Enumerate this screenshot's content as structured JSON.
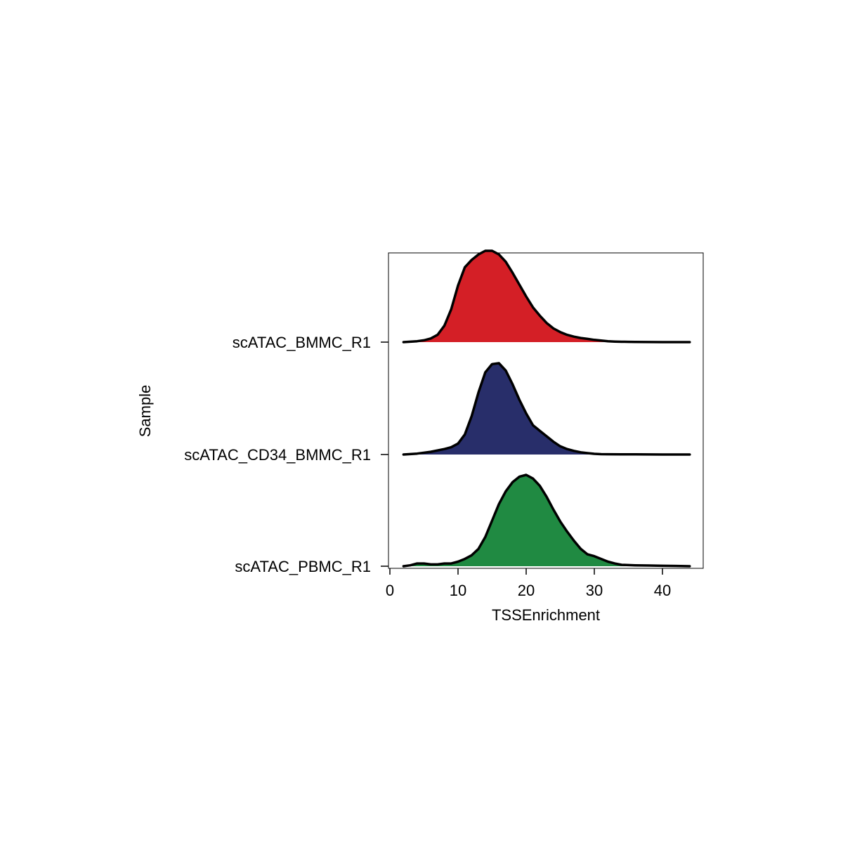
{
  "chart_data": {
    "type": "area",
    "subtype": "ridgeline",
    "xlabel": "TSSEnrichment",
    "ylabel": "Sample",
    "xlim": [
      0,
      46
    ],
    "x_ticks": [
      0,
      10,
      20,
      30,
      40
    ],
    "x_tick_labels": [
      "0",
      "10",
      "20",
      "30",
      "40"
    ],
    "categories": [
      "scATAC_BMMC_R1",
      "scATAC_CD34_BMMC_R1",
      "scATAC_PBMC_R1"
    ],
    "grid": false,
    "legend": "none",
    "series": [
      {
        "name": "scATAC_BMMC_R1",
        "color": "#D41F26",
        "x": [
          2,
          3,
          4,
          5,
          6,
          7,
          8,
          9,
          10,
          11,
          12,
          13,
          14,
          15,
          16,
          17,
          18,
          19,
          20,
          21,
          22,
          23,
          24,
          25,
          26,
          27,
          28,
          29,
          30,
          31,
          32,
          33,
          34,
          35,
          36,
          38,
          40,
          42,
          44
        ],
        "density": [
          0.0,
          0.005,
          0.01,
          0.02,
          0.04,
          0.08,
          0.18,
          0.36,
          0.62,
          0.82,
          0.9,
          0.96,
          1.0,
          1.0,
          0.96,
          0.88,
          0.76,
          0.63,
          0.5,
          0.38,
          0.29,
          0.21,
          0.15,
          0.11,
          0.08,
          0.06,
          0.045,
          0.035,
          0.025,
          0.017,
          0.01,
          0.006,
          0.004,
          0.003,
          0.002,
          0.001,
          0.0,
          0.0,
          0.0
        ]
      },
      {
        "name": "scATAC_CD34_BMMC_R1",
        "color": "#282E6A",
        "x": [
          2,
          4,
          6,
          8,
          9,
          10,
          11,
          12,
          13,
          14,
          15,
          16,
          17,
          18,
          19,
          20,
          21,
          22,
          23,
          24,
          25,
          26,
          27,
          28,
          29,
          30,
          31,
          32,
          34,
          36,
          38,
          40,
          42,
          44
        ],
        "density": [
          0.0,
          0.01,
          0.03,
          0.06,
          0.08,
          0.12,
          0.22,
          0.42,
          0.68,
          0.9,
          0.99,
          1.0,
          0.92,
          0.77,
          0.6,
          0.45,
          0.32,
          0.26,
          0.2,
          0.14,
          0.09,
          0.06,
          0.04,
          0.025,
          0.015,
          0.008,
          0.004,
          0.003,
          0.002,
          0.002,
          0.001,
          0.0,
          0.0,
          0.0
        ]
      },
      {
        "name": "scATAC_PBMC_R1",
        "color": "#208A42",
        "x": [
          2,
          3,
          4,
          5,
          6,
          7,
          8,
          9,
          10,
          11,
          12,
          13,
          14,
          15,
          16,
          17,
          18,
          19,
          20,
          21,
          22,
          23,
          24,
          25,
          26,
          27,
          28,
          29,
          30,
          31,
          32,
          33,
          34,
          36,
          38,
          40,
          42,
          44
        ],
        "density": [
          0.0,
          0.01,
          0.03,
          0.03,
          0.02,
          0.02,
          0.03,
          0.03,
          0.05,
          0.08,
          0.12,
          0.19,
          0.32,
          0.5,
          0.68,
          0.82,
          0.92,
          0.98,
          1.0,
          0.96,
          0.88,
          0.76,
          0.62,
          0.49,
          0.38,
          0.28,
          0.19,
          0.13,
          0.11,
          0.08,
          0.05,
          0.03,
          0.015,
          0.01,
          0.008,
          0.005,
          0.003,
          0.0
        ]
      }
    ]
  }
}
